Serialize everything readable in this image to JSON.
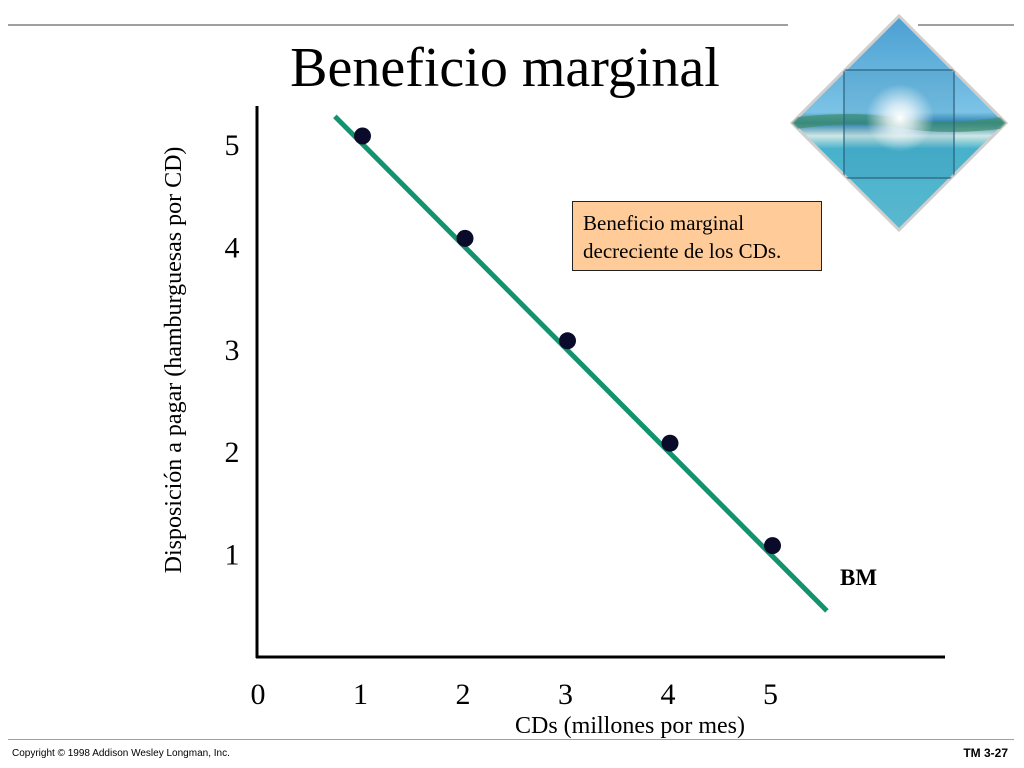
{
  "slide": {
    "title": "Beneficio marginal",
    "footer_copyright": "Copyright © 1998 Addison Wesley Longman, Inc.",
    "slide_number": "TM 3-27",
    "decorative_image": "tropical-beach-diamond-image"
  },
  "colors": {
    "curve": "#13926e",
    "points": "#0a0a2a",
    "annotation_fill": "#ffcc99",
    "rule": "#a0a0a0"
  },
  "chart_data": {
    "type": "line",
    "title": "Beneficio marginal",
    "xlabel": "CDs (millones por mes)",
    "ylabel": "Disposición a pagar (hamburguesas por CD)",
    "x_ticks": [
      "0",
      "1",
      "2",
      "3",
      "4",
      "5"
    ],
    "y_ticks": [
      "1",
      "2",
      "3",
      "4",
      "5"
    ],
    "xlim": [
      0,
      6.7
    ],
    "ylim": [
      0,
      5.4
    ],
    "grid": false,
    "series": [
      {
        "name": "BM",
        "label": "BM",
        "line_x": [
          0.75,
          5.55
        ],
        "line_y": [
          5.28,
          0.45
        ],
        "points": [
          {
            "x": 1,
            "y": 5
          },
          {
            "x": 2,
            "y": 4
          },
          {
            "x": 3,
            "y": 3
          },
          {
            "x": 4,
            "y": 2
          },
          {
            "x": 5,
            "y": 1
          }
        ]
      }
    ],
    "annotation": {
      "lines": [
        "Beneficio marginal",
        "decreciente de los CDs."
      ]
    }
  }
}
